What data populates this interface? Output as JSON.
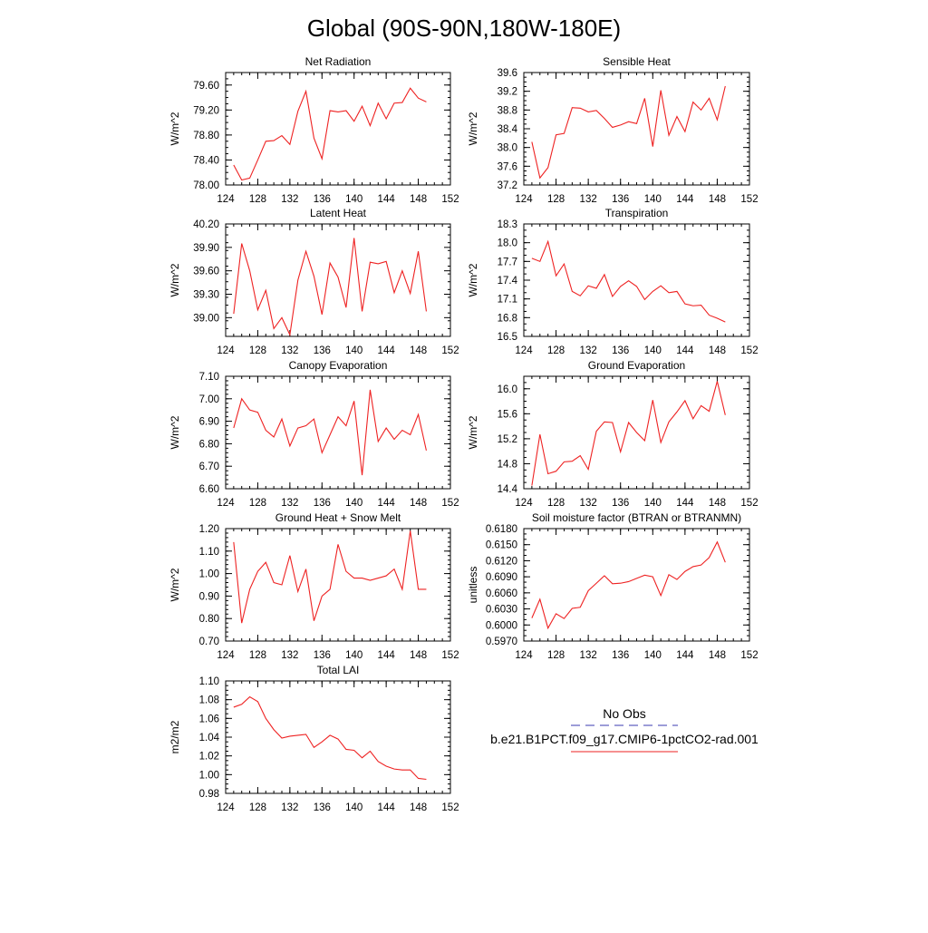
{
  "title": "Global (90S-90N,180W-180E)",
  "legend": {
    "obs_label": "No Obs",
    "obs_color": "#3b3bb0",
    "model_label": "b.e21.B1PCT.f09_g17.CMIP6-1pctCO2-rad.001",
    "model_color": "#ee2222"
  },
  "line_color": "#ee2222",
  "chart_data": [
    {
      "type": "line",
      "title": "Net Radiation",
      "ylabel": "W/m^2",
      "xlim": [
        124,
        152
      ],
      "xticks": [
        124,
        128,
        132,
        136,
        140,
        144,
        148,
        152
      ],
      "xtick_labels": [
        "124",
        "128",
        "132",
        "136",
        "140",
        "144",
        "148",
        "152"
      ],
      "xminor": 1,
      "ylim": [
        78.0,
        79.8
      ],
      "yticks": [
        78.0,
        78.4,
        78.8,
        79.2,
        79.6
      ],
      "ytick_labels": [
        "78.00",
        "78.40",
        "78.80",
        "79.20",
        "79.60"
      ],
      "yminor": 0.1,
      "x": [
        125,
        126,
        127,
        128,
        129,
        130,
        131,
        132,
        133,
        134,
        135,
        136,
        137,
        138,
        139,
        140,
        141,
        142,
        143,
        144,
        145,
        146,
        147,
        148,
        149
      ],
      "y": [
        78.32,
        78.08,
        78.11,
        78.4,
        78.7,
        78.71,
        78.79,
        78.65,
        79.18,
        79.5,
        78.75,
        78.42,
        79.19,
        79.17,
        79.19,
        79.02,
        79.26,
        78.95,
        79.31,
        79.06,
        79.31,
        79.32,
        79.55,
        79.39,
        79.33
      ]
    },
    {
      "type": "line",
      "title": "Sensible Heat",
      "ylabel": "W/m^2",
      "xlim": [
        124,
        152
      ],
      "xticks": [
        124,
        128,
        132,
        136,
        140,
        144,
        148,
        152
      ],
      "xtick_labels": [
        "124",
        "128",
        "132",
        "136",
        "140",
        "144",
        "148",
        "152"
      ],
      "xminor": 1,
      "ylim": [
        37.2,
        39.6
      ],
      "yticks": [
        37.2,
        37.6,
        38.0,
        38.4,
        38.8,
        39.2,
        39.6
      ],
      "ytick_labels": [
        "37.2",
        "37.6",
        "38.0",
        "38.4",
        "38.8",
        "39.2",
        "39.6"
      ],
      "yminor": 0.1,
      "x": [
        125,
        126,
        127,
        128,
        129,
        130,
        131,
        132,
        133,
        134,
        135,
        136,
        137,
        138,
        139,
        140,
        141,
        142,
        143,
        144,
        145,
        146,
        147,
        148,
        149
      ],
      "y": [
        38.12,
        37.35,
        37.57,
        38.27,
        38.3,
        38.85,
        38.84,
        38.76,
        38.79,
        38.62,
        38.43,
        38.48,
        38.55,
        38.51,
        39.05,
        38.02,
        39.22,
        38.26,
        38.66,
        38.34,
        38.97,
        38.8,
        39.05,
        38.59,
        39.31
      ]
    },
    {
      "type": "line",
      "title": "Latent Heat",
      "ylabel": "W/m^2",
      "xlim": [
        124,
        152
      ],
      "xticks": [
        124,
        128,
        132,
        136,
        140,
        144,
        148,
        152
      ],
      "xtick_labels": [
        "124",
        "128",
        "132",
        "136",
        "140",
        "144",
        "148",
        "152"
      ],
      "xminor": 1,
      "ylim": [
        38.76,
        40.2
      ],
      "yticks": [
        39.0,
        39.3,
        39.6,
        39.9,
        40.2
      ],
      "ytick_labels": [
        "39.00",
        "39.30",
        "39.60",
        "39.90",
        "40.20"
      ],
      "yminor": 0.1,
      "x": [
        125,
        126,
        127,
        128,
        129,
        130,
        131,
        132,
        133,
        134,
        135,
        136,
        137,
        138,
        139,
        140,
        141,
        142,
        143,
        144,
        145,
        146,
        147,
        148,
        149
      ],
      "y": [
        39.05,
        39.95,
        39.6,
        39.1,
        39.35,
        38.86,
        39.0,
        38.78,
        39.48,
        39.85,
        39.53,
        39.04,
        39.7,
        39.52,
        39.13,
        40.02,
        39.08,
        39.71,
        39.69,
        39.72,
        39.32,
        39.6,
        39.31,
        39.85,
        39.08
      ]
    },
    {
      "type": "line",
      "title": "Transpiration",
      "ylabel": "W/m^2",
      "xlim": [
        124,
        152
      ],
      "xticks": [
        124,
        128,
        132,
        136,
        140,
        144,
        148,
        152
      ],
      "xtick_labels": [
        "124",
        "128",
        "132",
        "136",
        "140",
        "144",
        "148",
        "152"
      ],
      "xminor": 1,
      "ylim": [
        16.5,
        18.3
      ],
      "yticks": [
        16.5,
        16.8,
        17.1,
        17.4,
        17.7,
        18.0,
        18.3
      ],
      "ytick_labels": [
        "16.5",
        "16.8",
        "17.1",
        "17.4",
        "17.7",
        "18.0",
        "18.3"
      ],
      "yminor": 0.1,
      "x": [
        125,
        126,
        127,
        128,
        129,
        130,
        131,
        132,
        133,
        134,
        135,
        136,
        137,
        138,
        139,
        140,
        141,
        142,
        143,
        144,
        145,
        146,
        147,
        148,
        149
      ],
      "y": [
        17.75,
        17.7,
        18.02,
        17.47,
        17.66,
        17.22,
        17.15,
        17.31,
        17.27,
        17.49,
        17.14,
        17.3,
        17.39,
        17.3,
        17.09,
        17.22,
        17.31,
        17.2,
        17.22,
        17.02,
        16.99,
        17.0,
        16.84,
        16.79,
        16.73
      ]
    },
    {
      "type": "line",
      "title": "Canopy Evaporation",
      "ylabel": "W/m^2",
      "xlim": [
        124,
        152
      ],
      "xticks": [
        124,
        128,
        132,
        136,
        140,
        144,
        148,
        152
      ],
      "xtick_labels": [
        "124",
        "128",
        "132",
        "136",
        "140",
        "144",
        "148",
        "152"
      ],
      "xminor": 1,
      "ylim": [
        6.6,
        7.1
      ],
      "yticks": [
        6.6,
        6.7,
        6.8,
        6.9,
        7.0,
        7.1
      ],
      "ytick_labels": [
        "6.60",
        "6.70",
        "6.80",
        "6.90",
        "7.00",
        "7.10"
      ],
      "yminor": 0.02,
      "x": [
        125,
        126,
        127,
        128,
        129,
        130,
        131,
        132,
        133,
        134,
        135,
        136,
        137,
        138,
        139,
        140,
        141,
        142,
        143,
        144,
        145,
        146,
        147,
        148,
        149
      ],
      "y": [
        6.87,
        7.0,
        6.95,
        6.94,
        6.86,
        6.83,
        6.91,
        6.79,
        6.87,
        6.88,
        6.91,
        6.76,
        6.84,
        6.92,
        6.88,
        6.99,
        6.66,
        7.04,
        6.81,
        6.87,
        6.82,
        6.86,
        6.84,
        6.93,
        6.77
      ]
    },
    {
      "type": "line",
      "title": "Ground Evaporation",
      "ylabel": "W/m^2",
      "xlim": [
        124,
        152
      ],
      "xticks": [
        124,
        128,
        132,
        136,
        140,
        144,
        148,
        152
      ],
      "xtick_labels": [
        "124",
        "128",
        "132",
        "136",
        "140",
        "144",
        "148",
        "152"
      ],
      "xminor": 1,
      "ylim": [
        14.4,
        16.2
      ],
      "yticks": [
        14.4,
        14.8,
        15.2,
        15.6,
        16.0
      ],
      "ytick_labels": [
        "14.4",
        "14.8",
        "15.2",
        "15.6",
        "16.0"
      ],
      "yminor": 0.1,
      "x": [
        125,
        126,
        127,
        128,
        129,
        130,
        131,
        132,
        133,
        134,
        135,
        136,
        137,
        138,
        139,
        140,
        141,
        142,
        143,
        144,
        145,
        146,
        147,
        148,
        149
      ],
      "y": [
        14.45,
        15.27,
        14.64,
        14.68,
        14.83,
        14.84,
        14.93,
        14.71,
        15.32,
        15.47,
        15.46,
        14.99,
        15.46,
        15.3,
        15.17,
        15.82,
        15.14,
        15.47,
        15.63,
        15.81,
        15.52,
        15.73,
        15.64,
        16.12,
        15.58
      ]
    },
    {
      "type": "line",
      "title": "Ground Heat + Snow Melt",
      "ylabel": "W/m^2",
      "xlim": [
        124,
        152
      ],
      "xticks": [
        124,
        128,
        132,
        136,
        140,
        144,
        148,
        152
      ],
      "xtick_labels": [
        "124",
        "128",
        "132",
        "136",
        "140",
        "144",
        "148",
        "152"
      ],
      "xminor": 1,
      "ylim": [
        0.7,
        1.2
      ],
      "yticks": [
        0.7,
        0.8,
        0.9,
        1.0,
        1.1,
        1.2
      ],
      "ytick_labels": [
        "0.70",
        "0.80",
        "0.90",
        "1.00",
        "1.10",
        "1.20"
      ],
      "yminor": 0.02,
      "x": [
        125,
        126,
        127,
        128,
        129,
        130,
        131,
        132,
        133,
        134,
        135,
        136,
        137,
        138,
        139,
        140,
        141,
        142,
        143,
        144,
        145,
        146,
        147,
        148,
        149
      ],
      "y": [
        1.14,
        0.78,
        0.93,
        1.01,
        1.05,
        0.96,
        0.95,
        1.08,
        0.92,
        1.02,
        0.79,
        0.9,
        0.93,
        1.13,
        1.01,
        0.98,
        0.98,
        0.97,
        0.98,
        0.99,
        1.02,
        0.93,
        1.19,
        0.93,
        0.93
      ]
    },
    {
      "type": "line",
      "title": "Soil moisture factor (BTRAN or BTRANMN)",
      "ylabel": "unitless",
      "xlim": [
        124,
        152
      ],
      "xticks": [
        124,
        128,
        132,
        136,
        140,
        144,
        148,
        152
      ],
      "xtick_labels": [
        "124",
        "128",
        "132",
        "136",
        "140",
        "144",
        "148",
        "152"
      ],
      "xminor": 1,
      "ylim": [
        0.597,
        0.618
      ],
      "yticks": [
        0.597,
        0.6,
        0.603,
        0.606,
        0.609,
        0.612,
        0.615,
        0.618
      ],
      "ytick_labels": [
        "0.5970",
        "0.6000",
        "0.6030",
        "0.6060",
        "0.6090",
        "0.6120",
        "0.6150",
        "0.6180"
      ],
      "yminor": 0.001,
      "x": [
        125,
        126,
        127,
        128,
        129,
        130,
        131,
        132,
        133,
        134,
        135,
        136,
        137,
        138,
        139,
        140,
        141,
        142,
        143,
        144,
        145,
        146,
        147,
        148,
        149
      ],
      "y": [
        0.6013,
        0.6048,
        0.5994,
        0.6021,
        0.6012,
        0.6031,
        0.6033,
        0.6064,
        0.6078,
        0.6092,
        0.6077,
        0.6078,
        0.6081,
        0.6087,
        0.6093,
        0.609,
        0.6055,
        0.6094,
        0.6085,
        0.61,
        0.6109,
        0.6112,
        0.6126,
        0.6155,
        0.6117
      ]
    },
    {
      "type": "line",
      "title": "Total LAI",
      "ylabel": "m2/m2",
      "xlim": [
        124,
        152
      ],
      "xticks": [
        124,
        128,
        132,
        136,
        140,
        144,
        148,
        152
      ],
      "xtick_labels": [
        "124",
        "128",
        "132",
        "136",
        "140",
        "144",
        "148",
        "152"
      ],
      "xminor": 1,
      "ylim": [
        0.98,
        1.1
      ],
      "yticks": [
        0.98,
        1.0,
        1.02,
        1.04,
        1.06,
        1.08,
        1.1
      ],
      "ytick_labels": [
        "0.98",
        "1.00",
        "1.02",
        "1.04",
        "1.06",
        "1.08",
        "1.10"
      ],
      "yminor": 0.005,
      "x": [
        125,
        126,
        127,
        128,
        129,
        130,
        131,
        132,
        133,
        134,
        135,
        136,
        137,
        138,
        139,
        140,
        141,
        142,
        143,
        144,
        145,
        146,
        147,
        148,
        149
      ],
      "y": [
        1.072,
        1.075,
        1.083,
        1.078,
        1.06,
        1.048,
        1.039,
        1.041,
        1.042,
        1.043,
        1.029,
        1.035,
        1.042,
        1.038,
        1.027,
        1.026,
        1.018,
        1.025,
        1.014,
        1.009,
        1.006,
        1.005,
        1.005,
        0.996,
        0.995
      ]
    }
  ]
}
